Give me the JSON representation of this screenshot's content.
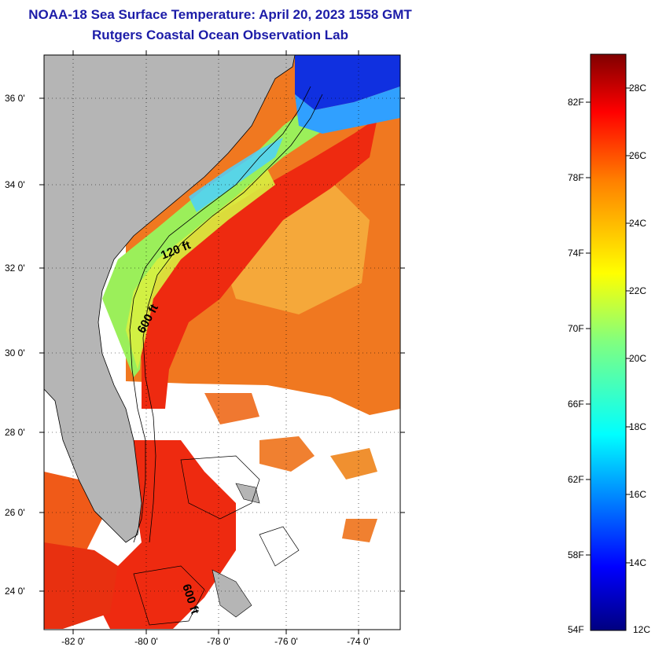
{
  "title": "NOAA-18 Sea Surface Temperature:  April 20, 2023 1558 GMT",
  "subtitle": "Rutgers Coastal Ocean Observation Lab",
  "lat_labels": [
    "36 0'",
    "34 0'",
    "32 0'",
    "30 0'",
    "28 0'",
    "26 0'",
    "24 0'"
  ],
  "lon_labels": [
    "-82 0'",
    "-80 0'",
    "-78 0'",
    "-76 0'",
    "-74 0'"
  ],
  "contours": [
    "120 ft",
    "600 ft",
    "600 ft"
  ],
  "colorbar": {
    "fahrenheit": [
      "82F",
      "78F",
      "74F",
      "70F",
      "66F",
      "62F",
      "58F",
      "54F"
    ],
    "celsius": [
      "28C",
      "26C",
      "24C",
      "22C",
      "20C",
      "18C",
      "16C",
      "14C",
      "12C"
    ]
  },
  "colors": {
    "title": "#1c1ca8",
    "land": "#b5b5b5",
    "warm": "#ee2a10",
    "cool": "#4cd0ff"
  }
}
